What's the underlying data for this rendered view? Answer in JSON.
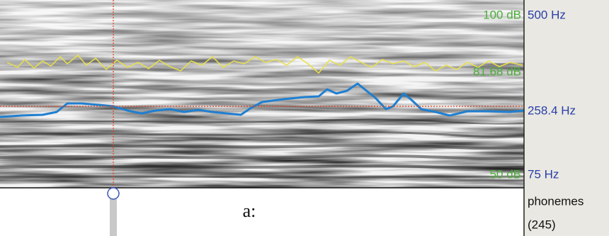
{
  "spectrogram": {
    "db_labels": [
      "100 dB",
      "81.68 dB",
      "50 dB"
    ],
    "hz_labels": [
      "500 Hz",
      "258.4 Hz",
      "75 Hz"
    ]
  },
  "tier": {
    "name": "phonemes",
    "count": "(245)",
    "interval_label": "a:"
  }
}
